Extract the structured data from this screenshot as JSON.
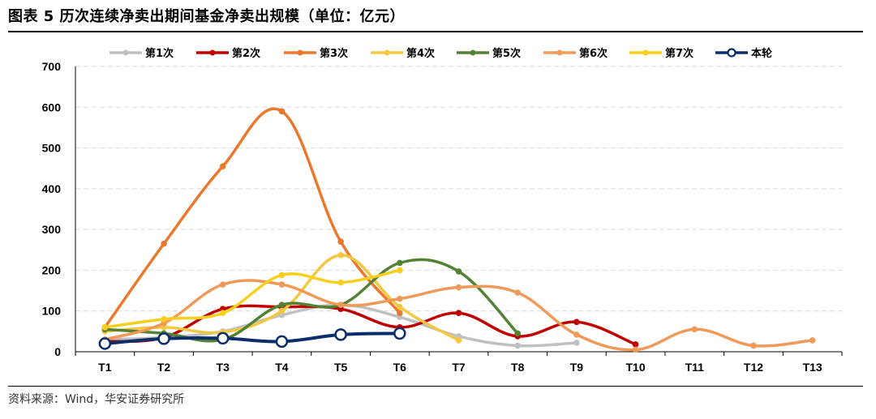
{
  "title": "图表 5 历次连续净卖出期间基金净卖出规模（单位：亿元）",
  "source": "资料来源：Wind，华安证券研究所",
  "chart_data": {
    "type": "line",
    "categories": [
      "T1",
      "T2",
      "T3",
      "T4",
      "T5",
      "T6",
      "T7",
      "T8",
      "T9",
      "T10",
      "T11",
      "T12",
      "T13"
    ],
    "ylim": [
      0,
      700
    ],
    "yticks": [
      0,
      100,
      200,
      300,
      400,
      500,
      600,
      700
    ],
    "grid": "horizontal dashed",
    "legend_position": "top",
    "series": [
      {
        "name": "第1次",
        "color": "#c0c0c0",
        "marker": "filled",
        "values": [
          30,
          35,
          50,
          90,
          115,
          85,
          38,
          15,
          22,
          null,
          null,
          null,
          null
        ]
      },
      {
        "name": "第2次",
        "color": "#c00000",
        "marker": "filled",
        "values": [
          25,
          35,
          105,
          110,
          105,
          60,
          95,
          38,
          73,
          18,
          null,
          null,
          null
        ]
      },
      {
        "name": "第3次",
        "color": "#e8792d",
        "marker": "filled",
        "values": [
          60,
          265,
          455,
          590,
          270,
          95,
          null,
          null,
          null,
          null,
          null,
          null,
          null
        ]
      },
      {
        "name": "第4次",
        "color": "#f4c842",
        "marker": "filled",
        "values": [
          50,
          60,
          48,
          100,
          237,
          110,
          28,
          null,
          null,
          null,
          null,
          null,
          null
        ]
      },
      {
        "name": "第5次",
        "color": "#548235",
        "marker": "filled",
        "values": [
          55,
          45,
          30,
          115,
          115,
          218,
          197,
          45,
          null,
          null,
          null,
          null,
          null
        ]
      },
      {
        "name": "第6次",
        "color": "#f09a5a",
        "marker": "filled",
        "values": [
          30,
          70,
          165,
          165,
          115,
          130,
          158,
          145,
          42,
          5,
          55,
          15,
          28
        ]
      },
      {
        "name": "第7次",
        "color": "#f7d01f",
        "marker": "filled",
        "values": [
          60,
          80,
          95,
          188,
          170,
          200,
          null,
          null,
          null,
          null,
          null,
          null,
          null
        ]
      },
      {
        "name": "本轮",
        "color": "#0b2e6b",
        "marker": "hollow",
        "values": [
          20,
          32,
          33,
          25,
          42,
          45,
          null,
          null,
          null,
          null,
          null,
          null,
          null
        ]
      }
    ]
  }
}
